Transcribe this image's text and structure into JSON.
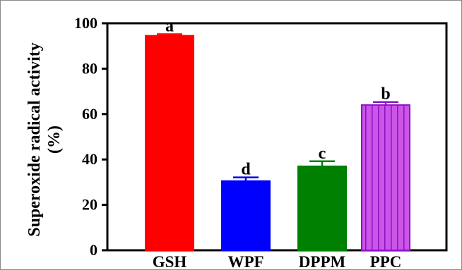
{
  "chart_data": {
    "type": "bar",
    "title": "",
    "xlabel": "",
    "ylabel_line1": "Superoxide radical  activity",
    "ylabel_line2": "(%)",
    "ylim": [
      0,
      100
    ],
    "yticks": [
      0,
      20,
      40,
      60,
      80,
      100
    ],
    "grid": false,
    "categories": [
      "GSH",
      "WPF",
      "DPPM",
      "PPC"
    ],
    "values": [
      94.5,
      30.5,
      37,
      64
    ],
    "errors": [
      0.7,
      1.6,
      2.2,
      1.3
    ],
    "significance_labels": [
      "a",
      "d",
      "c",
      "b"
    ],
    "bar_fill_colors": [
      "#ff0000",
      "#0000ff",
      "#008000",
      "#cc55e8"
    ],
    "bar_edge_colors": [
      "#ff0000",
      "#0000ff",
      "#008000",
      "#8a16c4"
    ],
    "bar_patterns": [
      "solid",
      "solid",
      "solid",
      "vertical-stripes"
    ]
  }
}
